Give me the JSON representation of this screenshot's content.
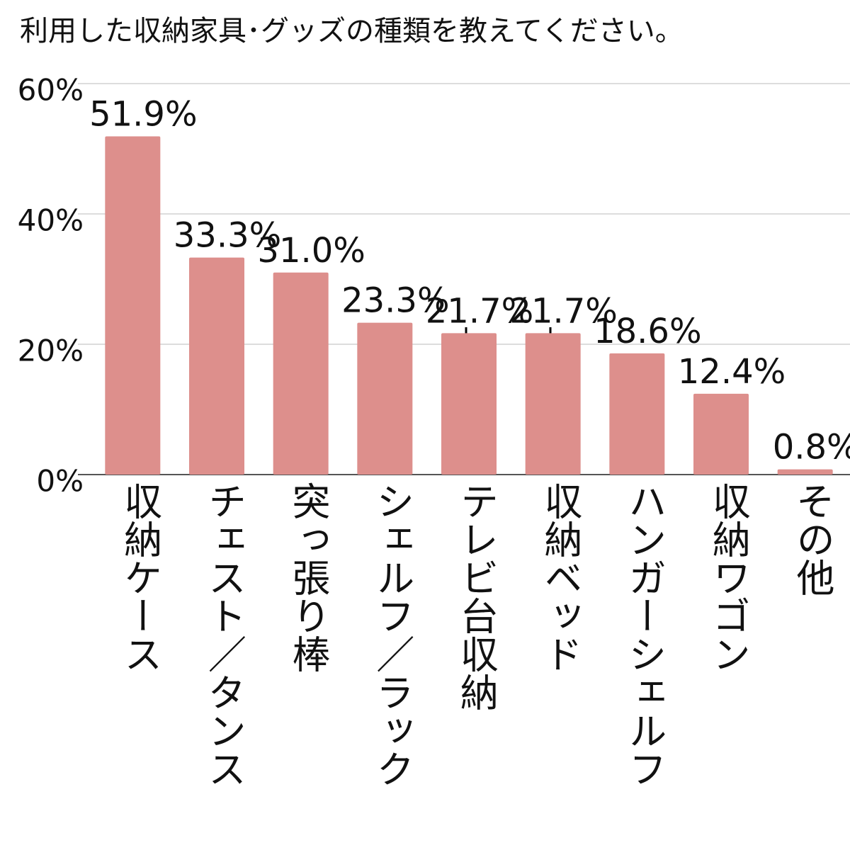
{
  "chart_data": {
    "type": "bar",
    "title": "利用した収納家具･グッズの種類を教えてください。",
    "categories": [
      "収納ケース",
      "チェスト／タンス",
      "突っ張り棒",
      "シェルフ／ラック",
      "テレビ台収納",
      "収納ベッド",
      "ハンガーシェルフ",
      "収納ワゴン",
      "その他"
    ],
    "values": [
      51.9,
      33.3,
      31.0,
      23.3,
      21.7,
      21.7,
      18.6,
      12.4,
      0.8
    ],
    "value_labels": [
      "51.9%",
      "33.3%",
      "31.0%",
      "23.3%",
      "21.7%",
      "21.7%",
      "18.6%",
      "12.4%",
      "0.8%"
    ],
    "color": "#dd8f8c",
    "ylim": [
      0,
      60
    ],
    "yticks": [
      {
        "value": 0,
        "label": "0%"
      },
      {
        "value": 20,
        "label": "20%"
      },
      {
        "value": 40,
        "label": "40%"
      },
      {
        "value": 60,
        "label": "60%"
      }
    ],
    "grid": true
  }
}
